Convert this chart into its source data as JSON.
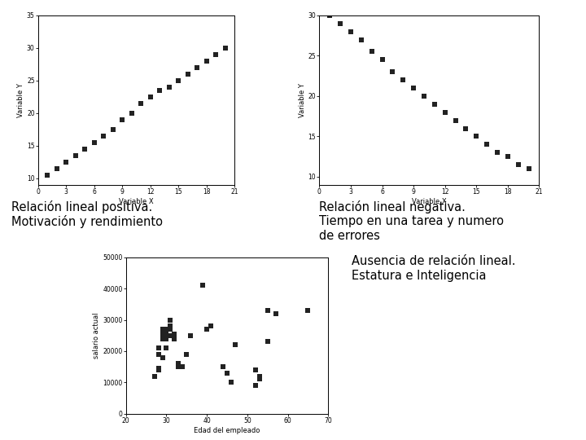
{
  "plot1": {
    "xlabel": "Variable X",
    "ylabel": "Variable Y",
    "x": [
      1,
      2,
      3,
      4,
      5,
      6,
      7,
      8,
      9,
      10,
      11,
      12,
      13,
      14,
      15,
      16,
      17,
      18,
      19,
      20
    ],
    "y": [
      10.5,
      11.5,
      12.5,
      13.5,
      14.5,
      15.5,
      16.5,
      17.5,
      19.0,
      20.0,
      21.5,
      22.5,
      23.5,
      24.0,
      25.0,
      26.0,
      27.0,
      28.0,
      29.0,
      30.0
    ],
    "xlim": [
      0,
      21
    ],
    "ylim": [
      9,
      35
    ],
    "xticks": [
      0,
      3,
      6,
      9,
      12,
      15,
      18,
      21
    ],
    "yticks": [
      10,
      15,
      20,
      25,
      30,
      35
    ]
  },
  "plot2": {
    "xlabel": "Variable X",
    "ylabel": "Variable Y",
    "x": [
      1,
      2,
      3,
      4,
      5,
      6,
      7,
      8,
      9,
      10,
      11,
      12,
      13,
      14,
      15,
      16,
      17,
      18,
      19,
      20
    ],
    "y": [
      30.0,
      29.0,
      28.0,
      27.0,
      25.5,
      24.5,
      23.0,
      22.0,
      21.0,
      20.0,
      19.0,
      18.0,
      17.0,
      16.0,
      15.0,
      14.0,
      13.0,
      12.5,
      11.5,
      11.0
    ],
    "xlim": [
      0,
      21
    ],
    "ylim": [
      9,
      30
    ],
    "xticks": [
      0,
      3,
      6,
      9,
      12,
      15,
      18,
      21
    ],
    "yticks": [
      10,
      15,
      20,
      25,
      30
    ]
  },
  "plot3": {
    "xlabel": "Edad del empleado",
    "ylabel": "salario actual",
    "xlim": [
      20,
      70
    ],
    "ylim": [
      0,
      50000
    ],
    "xticks": [
      20,
      30,
      40,
      50,
      60,
      70
    ],
    "yticks": [
      0,
      10000,
      20000,
      30000,
      40000,
      50000
    ],
    "x": [
      27,
      28,
      28,
      28,
      28,
      29,
      29,
      29,
      29,
      29,
      30,
      30,
      30,
      30,
      30,
      31,
      31,
      31,
      31,
      32,
      32,
      33,
      33,
      34,
      35,
      36,
      39,
      40,
      41,
      44,
      45,
      46,
      47,
      52,
      52,
      53,
      53,
      55,
      55,
      57,
      65
    ],
    "y": [
      12000,
      14000,
      14500,
      19000,
      21000,
      18000,
      24000,
      25000,
      26000,
      27000,
      21000,
      24000,
      25500,
      26000,
      27000,
      25000,
      27000,
      28000,
      30000,
      24000,
      25500,
      15000,
      16000,
      15000,
      19000,
      25000,
      41000,
      27000,
      28000,
      15000,
      13000,
      10000,
      22000,
      9000,
      14000,
      11000,
      12000,
      23000,
      33000,
      32000,
      33000
    ]
  },
  "label1": "Relación lineal positiva.\nMotivación y rendimiento",
  "label2": "Relación lineal negativa.\nTiempo en una tarea y numero\nde errores",
  "label3": "Ausencia de relación lineal.\nEstatura e Inteligencia",
  "bg_color": "#ffffff",
  "marker": "s",
  "marker_size": 4,
  "marker_color": "#222222",
  "tick_fontsize": 5.5,
  "label_fontsize": 6,
  "text_fontsize": 10.5
}
